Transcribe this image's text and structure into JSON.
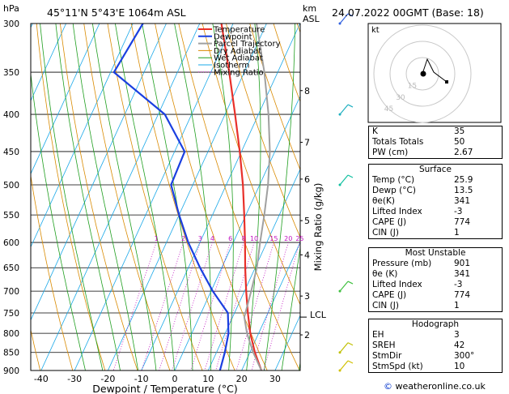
{
  "header": {
    "hpa": "hPa",
    "location": "45°11'N  5°43'E  1064m  ASL",
    "km": "km",
    "asl": "ASL",
    "date": "24.07.2022  00GMT  (Base: 18)"
  },
  "axis": {
    "xlabel": "Dewpoint / Temperature (°C)",
    "ylabel_right": "Mixing Ratio (g/kg)",
    "lcl": "LCL"
  },
  "chart_data": {
    "type": "line",
    "title": "",
    "xlabel": "Dewpoint / Temperature (°C)",
    "ylabel": "hPa",
    "pressure_levels": [
      300,
      350,
      400,
      450,
      500,
      550,
      600,
      650,
      700,
      750,
      800,
      850,
      900
    ],
    "x_ticks": [
      -40,
      -30,
      -20,
      -10,
      0,
      10,
      20,
      30
    ],
    "km_ticks": [
      {
        "label": "8",
        "p": 371
      },
      {
        "label": "7",
        "p": 437
      },
      {
        "label": "6",
        "p": 491
      },
      {
        "label": "5",
        "p": 560
      },
      {
        "label": "4",
        "p": 624
      },
      {
        "label": "3",
        "p": 711
      },
      {
        "label": "2",
        "p": 804
      }
    ],
    "mixing_ratio_labels": [
      "1",
      "2",
      "3",
      "4",
      "6",
      "8",
      "10",
      "15",
      "20",
      "25"
    ],
    "legend": [
      "Temperature",
      "Dewpoint",
      "Parcel Trajectory",
      "Dry Adiabat",
      "Wet Adiabat",
      "Isotherm",
      "Mixing Ratio"
    ],
    "colors": {
      "temperature": "#e8302a",
      "dewpoint": "#1a3fe0",
      "parcel": "#a0a0a0",
      "dry_adiabat": "#d98a00",
      "wet_adiabat": "#1e9e1e",
      "isotherm": "#19a8e8",
      "mixing_ratio": "#c010c0"
    },
    "series": [
      {
        "name": "Temperature",
        "points": [
          [
            900,
            25.9
          ],
          [
            850,
            21.5
          ],
          [
            800,
            17.5
          ],
          [
            750,
            14.0
          ],
          [
            700,
            10.5
          ],
          [
            650,
            7.0
          ],
          [
            600,
            3.5
          ],
          [
            550,
            -0.5
          ],
          [
            500,
            -5.0
          ],
          [
            450,
            -10.5
          ],
          [
            400,
            -17.0
          ],
          [
            350,
            -24.5
          ],
          [
            300,
            -33.5
          ]
        ]
      },
      {
        "name": "Dewpoint",
        "points": [
          [
            900,
            13.5
          ],
          [
            850,
            12.5
          ],
          [
            800,
            11.0
          ],
          [
            750,
            8.0
          ],
          [
            700,
            0.5
          ],
          [
            650,
            -6.5
          ],
          [
            600,
            -13.5
          ],
          [
            550,
            -20.0
          ],
          [
            500,
            -26.5
          ],
          [
            450,
            -27.0
          ],
          [
            400,
            -38.0
          ],
          [
            350,
            -59.0
          ],
          [
            300,
            -57.0
          ]
        ]
      },
      {
        "name": "Parcel Trajectory",
        "points": [
          [
            900,
            25.9
          ],
          [
            850,
            21.0
          ],
          [
            800,
            16.5
          ],
          [
            760,
            13.5
          ],
          [
            700,
            12.0
          ],
          [
            650,
            10.5
          ],
          [
            600,
            8.0
          ],
          [
            550,
            5.5
          ],
          [
            500,
            2.5
          ],
          [
            450,
            -1.5
          ],
          [
            400,
            -7.0
          ],
          [
            350,
            -14.0
          ],
          [
            300,
            -23.0
          ]
        ]
      }
    ],
    "wind_barbs": [
      300,
      400,
      500,
      700,
      850,
      900
    ]
  },
  "hodograph": {
    "label": "kt",
    "rings": [
      "15",
      "30",
      "45"
    ]
  },
  "table": {
    "k_label": "K",
    "k": "35",
    "tt_label": "Totals Totals",
    "tt": "50",
    "pw_label": "PW (cm)",
    "pw": "2.67",
    "surface_hdr": "Surface",
    "s_temp_label": "Temp (°C)",
    "s_temp": "25.9",
    "s_dewp_label": "Dewp (°C)",
    "s_dewp": "13.5",
    "s_theta_label": "θe(K)",
    "s_theta": "341",
    "s_li_label": "Lifted Index",
    "s_li": "-3",
    "s_cape_label": "CAPE (J)",
    "s_cape": "774",
    "s_cin_label": "CIN (J)",
    "s_cin": "1",
    "mu_hdr": "Most Unstable",
    "mu_p_label": "Pressure (mb)",
    "mu_p": "901",
    "mu_theta_label": "θe (K)",
    "mu_theta": "341",
    "mu_li_label": "Lifted Index",
    "mu_li": "-3",
    "mu_cape_label": "CAPE (J)",
    "mu_cape": "774",
    "mu_cin_label": "CIN (J)",
    "mu_cin": "1",
    "hodo_hdr": "Hodograph",
    "eh_label": "EH",
    "eh": "3",
    "sreh_label": "SREH",
    "sreh": "42",
    "stmdir_label": "StmDir",
    "stmdir": "300°",
    "stmspd_label": "StmSpd (kt)",
    "stmspd": "10"
  },
  "footer": {
    "copyright": "©",
    "site": "weatheronline.co.uk"
  }
}
